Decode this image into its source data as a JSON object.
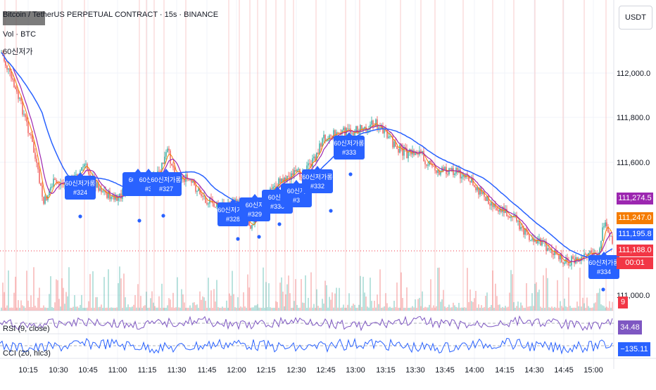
{
  "header": {
    "title": "Bitcoin / TetherUS PERPETUAL CONTRACT · 15s · BINANCE",
    "vol_label": "Vol · BTC",
    "indicator_label": "60신저가"
  },
  "currency_button": "USDT",
  "price_axis": {
    "ticks": [
      "112,000.0",
      "111,800.0",
      "111,600.0",
      "111,000.0"
    ]
  },
  "price_tags": [
    {
      "label": "111,274.5",
      "color": "#9c27b0"
    },
    {
      "label": "111,247.0",
      "color": "#f57c00"
    },
    {
      "label": "111,195.8",
      "color": "#2962ff"
    },
    {
      "label": "111,188.0",
      "color": "#f23645"
    },
    {
      "label": "00:01",
      "color": "#f23645"
    },
    {
      "label": "9",
      "color": "#f23645"
    }
  ],
  "time_axis": [
    "10:15",
    "10:30",
    "10:45",
    "11:00",
    "11:15",
    "11:30",
    "11:45",
    "12:00",
    "12:15",
    "12:30",
    "12:45",
    "13:00",
    "13:15",
    "13:30",
    "13:45",
    "14:00",
    "14:15",
    "14:30",
    "14:45",
    "15:00"
  ],
  "markers": [
    {
      "line1": "60신저가롱",
      "line2": "#324"
    },
    {
      "line1": "60신저",
      "line2": "#3"
    },
    {
      "line1": "60신저가롱",
      "line2": "#327"
    },
    {
      "line1": "60신저가롱",
      "line2": "#328"
    },
    {
      "line1": "60신저",
      "line2": "#329"
    },
    {
      "line1": "60신저",
      "line2": "#330"
    },
    {
      "line1": "60신저",
      "line2": "#3"
    },
    {
      "line1": "60신저가롱",
      "line2": "#332"
    },
    {
      "line1": "60신저가롱",
      "line2": "#333"
    },
    {
      "line1": "60신저가롱",
      "line2": "#334"
    }
  ],
  "rsi": {
    "label": "RSI (9, close)",
    "value": "34.48",
    "color": "#7e57c2"
  },
  "cci": {
    "label": "CCI (20, hlc3)",
    "value": "−135.11",
    "color": "#2962ff"
  },
  "colors": {
    "up": "#26a69a",
    "down": "#ef5350",
    "ma_fast": "#9c27b0",
    "ma_slow": "#2962ff",
    "ma_mid": "#f57c00",
    "marker": "#2962ff"
  }
}
